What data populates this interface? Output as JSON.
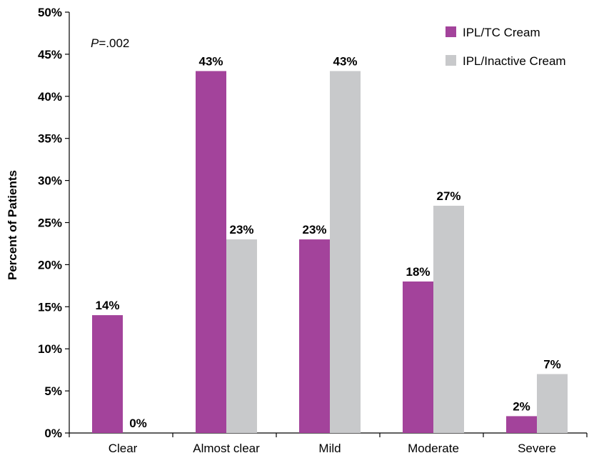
{
  "chart_data": {
    "type": "bar",
    "title": "",
    "xlabel": "",
    "ylabel": "Percent of Patients",
    "ylim": [
      0,
      50
    ],
    "yticks": [
      "0%",
      "5%",
      "10%",
      "15%",
      "20%",
      "25%",
      "30%",
      "35%",
      "40%",
      "45%",
      "50%"
    ],
    "categories": [
      "Clear",
      "Almost clear",
      "Mild",
      "Moderate",
      "Severe"
    ],
    "series": [
      {
        "name": "IPL/TC Cream",
        "color": "#A3439B",
        "values": [
          14,
          43,
          23,
          18,
          2
        ],
        "labels": [
          "14%",
          "43%",
          "23%",
          "18%",
          "2%"
        ]
      },
      {
        "name": "IPL/Inactive Cream",
        "color": "#C8C9CB",
        "values": [
          0,
          23,
          43,
          27,
          7
        ],
        "labels": [
          "0%",
          "23%",
          "43%",
          "27%",
          "7%"
        ]
      }
    ],
    "annotation": {
      "italic_part": "P",
      "rest": "=.002"
    },
    "legend_position": "top-right",
    "grid": false
  }
}
